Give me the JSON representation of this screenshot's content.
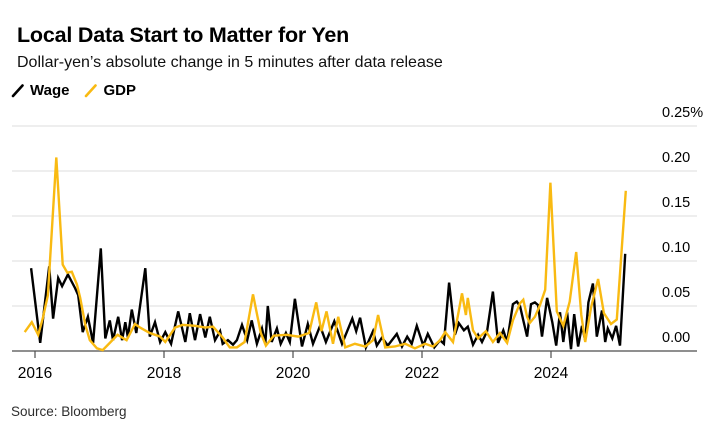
{
  "source_note": "Source: Bloomberg",
  "chart_data": {
    "type": "line",
    "title": "Local Data Start to Matter for Yen",
    "subtitle": "Dollar-yen’s absolute change in 5 minutes after data release",
    "xlabel": "",
    "ylabel": "",
    "grid": true,
    "legend_position": "top-left",
    "xlim": [
      2015.8,
      2025.3
    ],
    "ylim": [
      0,
      0.25
    ],
    "x_ticks": [
      {
        "value": 2016,
        "label": "2016"
      },
      {
        "value": 2018,
        "label": "2018"
      },
      {
        "value": 2020,
        "label": "2020"
      },
      {
        "value": 2022,
        "label": "2022"
      },
      {
        "value": 2024,
        "label": "2024"
      }
    ],
    "y_ticks": [
      {
        "value": 0.25,
        "label": "0.25%"
      },
      {
        "value": 0.2,
        "label": "0.20"
      },
      {
        "value": 0.15,
        "label": "0.15"
      },
      {
        "value": 0.1,
        "label": "0.10"
      },
      {
        "value": 0.05,
        "label": "0.05"
      },
      {
        "value": 0.0,
        "label": "0.00"
      }
    ],
    "style": {
      "grid_color": "#dcdcdc",
      "axis_color": "#8f8f8f",
      "tick_color": "#4d4d4d",
      "label_color": "#000000"
    },
    "series": [
      {
        "name": "Wage",
        "color": "#000000",
        "points": [
          [
            2015.94,
            0.092
          ],
          [
            2016.08,
            0.009
          ],
          [
            2016.22,
            0.094
          ],
          [
            2016.28,
            0.036
          ],
          [
            2016.36,
            0.081
          ],
          [
            2016.42,
            0.072
          ],
          [
            2016.51,
            0.085
          ],
          [
            2016.62,
            0.07
          ],
          [
            2016.67,
            0.062
          ],
          [
            2016.74,
            0.021
          ],
          [
            2016.82,
            0.038
          ],
          [
            2016.9,
            0.009
          ],
          [
            2017.02,
            0.114
          ],
          [
            2017.09,
            0.014
          ],
          [
            2017.16,
            0.034
          ],
          [
            2017.21,
            0.012
          ],
          [
            2017.29,
            0.038
          ],
          [
            2017.35,
            0.012
          ],
          [
            2017.4,
            0.032
          ],
          [
            2017.44,
            0.015
          ],
          [
            2017.5,
            0.046
          ],
          [
            2017.57,
            0.02
          ],
          [
            2017.71,
            0.092
          ],
          [
            2017.78,
            0.016
          ],
          [
            2017.86,
            0.032
          ],
          [
            2017.94,
            0.01
          ],
          [
            2018.02,
            0.021
          ],
          [
            2018.11,
            0.008
          ],
          [
            2018.22,
            0.044
          ],
          [
            2018.33,
            0.01
          ],
          [
            2018.4,
            0.042
          ],
          [
            2018.48,
            0.012
          ],
          [
            2018.56,
            0.041
          ],
          [
            2018.64,
            0.015
          ],
          [
            2018.71,
            0.038
          ],
          [
            2018.79,
            0.012
          ],
          [
            2018.87,
            0.022
          ],
          [
            2018.91,
            0.008
          ],
          [
            2018.99,
            0.012
          ],
          [
            2019.07,
            0.007
          ],
          [
            2019.13,
            0.012
          ],
          [
            2019.21,
            0.029
          ],
          [
            2019.29,
            0.012
          ],
          [
            2019.36,
            0.034
          ],
          [
            2019.44,
            0.008
          ],
          [
            2019.52,
            0.025
          ],
          [
            2019.57,
            0.008
          ],
          [
            2019.61,
            0.05
          ],
          [
            2019.67,
            0.01
          ],
          [
            2019.75,
            0.025
          ],
          [
            2019.81,
            0.008
          ],
          [
            2019.89,
            0.02
          ],
          [
            2019.95,
            0.01
          ],
          [
            2020.03,
            0.058
          ],
          [
            2020.14,
            0.005
          ],
          [
            2020.23,
            0.03
          ],
          [
            2020.31,
            0.008
          ],
          [
            2020.42,
            0.028
          ],
          [
            2020.51,
            0.01
          ],
          [
            2020.64,
            0.033
          ],
          [
            2020.76,
            0.008
          ],
          [
            2020.92,
            0.036
          ],
          [
            2020.98,
            0.022
          ],
          [
            2021.04,
            0.037
          ],
          [
            2021.13,
            0.004
          ],
          [
            2021.24,
            0.022
          ],
          [
            2021.3,
            0.006
          ],
          [
            2021.38,
            0.015
          ],
          [
            2021.47,
            0.006
          ],
          [
            2021.61,
            0.019
          ],
          [
            2021.69,
            0.005
          ],
          [
            2021.77,
            0.016
          ],
          [
            2021.84,
            0.008
          ],
          [
            2021.92,
            0.028
          ],
          [
            2022.02,
            0.006
          ],
          [
            2022.09,
            0.019
          ],
          [
            2022.19,
            0.004
          ],
          [
            2022.28,
            0.012
          ],
          [
            2022.34,
            0.008
          ],
          [
            2022.42,
            0.076
          ],
          [
            2022.51,
            0.018
          ],
          [
            2022.57,
            0.031
          ],
          [
            2022.65,
            0.023
          ],
          [
            2022.71,
            0.027
          ],
          [
            2022.79,
            0.007
          ],
          [
            2022.87,
            0.018
          ],
          [
            2022.93,
            0.01
          ],
          [
            2023.01,
            0.022
          ],
          [
            2023.1,
            0.066
          ],
          [
            2023.18,
            0.009
          ],
          [
            2023.26,
            0.023
          ],
          [
            2023.32,
            0.01
          ],
          [
            2023.41,
            0.052
          ],
          [
            2023.47,
            0.055
          ],
          [
            2023.52,
            0.05
          ],
          [
            2023.57,
            0.034
          ],
          [
            2023.63,
            0.016
          ],
          [
            2023.69,
            0.052
          ],
          [
            2023.75,
            0.054
          ],
          [
            2023.8,
            0.051
          ],
          [
            2023.86,
            0.016
          ],
          [
            2023.94,
            0.059
          ],
          [
            2024.02,
            0.032
          ],
          [
            2024.08,
            0.006
          ],
          [
            2024.14,
            0.043
          ],
          [
            2024.19,
            0.01
          ],
          [
            2024.25,
            0.043
          ],
          [
            2024.31,
            0.002
          ],
          [
            2024.36,
            0.041
          ],
          [
            2024.42,
            0.005
          ],
          [
            2024.48,
            0.028
          ],
          [
            2024.53,
            0.012
          ],
          [
            2024.58,
            0.054
          ],
          [
            2024.65,
            0.075
          ],
          [
            2024.71,
            0.016
          ],
          [
            2024.79,
            0.045
          ],
          [
            2024.84,
            0.01
          ],
          [
            2024.88,
            0.025
          ],
          [
            2024.95,
            0.014
          ],
          [
            2025.01,
            0.028
          ],
          [
            2025.07,
            0.006
          ],
          [
            2025.15,
            0.108
          ]
        ]
      },
      {
        "name": "GDP",
        "color": "#f9ba12",
        "points": [
          [
            2015.84,
            0.021
          ],
          [
            2015.95,
            0.032
          ],
          [
            2016.05,
            0.018
          ],
          [
            2016.12,
            0.036
          ],
          [
            2016.2,
            0.062
          ],
          [
            2016.33,
            0.215
          ],
          [
            2016.43,
            0.096
          ],
          [
            2016.5,
            0.087
          ],
          [
            2016.57,
            0.088
          ],
          [
            2016.65,
            0.074
          ],
          [
            2016.7,
            0.059
          ],
          [
            2016.78,
            0.029
          ],
          [
            2016.85,
            0.012
          ],
          [
            2016.96,
            0.003
          ],
          [
            2017.05,
            0.001
          ],
          [
            2017.16,
            0.009
          ],
          [
            2017.28,
            0.018
          ],
          [
            2017.42,
            0.012
          ],
          [
            2017.55,
            0.03
          ],
          [
            2017.63,
            0.026
          ],
          [
            2017.78,
            0.02
          ],
          [
            2017.94,
            0.016
          ],
          [
            2018.02,
            0.01
          ],
          [
            2018.17,
            0.026
          ],
          [
            2018.29,
            0.029
          ],
          [
            2018.48,
            0.028
          ],
          [
            2018.64,
            0.026
          ],
          [
            2018.76,
            0.027
          ],
          [
            2018.91,
            0.015
          ],
          [
            2019.02,
            0.004
          ],
          [
            2019.13,
            0.004
          ],
          [
            2019.25,
            0.01
          ],
          [
            2019.38,
            0.063
          ],
          [
            2019.5,
            0.02
          ],
          [
            2019.58,
            0.006
          ],
          [
            2019.7,
            0.017
          ],
          [
            2019.9,
            0.018
          ],
          [
            2020.08,
            0.016
          ],
          [
            2020.25,
            0.02
          ],
          [
            2020.36,
            0.054
          ],
          [
            2020.44,
            0.022
          ],
          [
            2020.52,
            0.044
          ],
          [
            2020.62,
            0.008
          ],
          [
            2020.7,
            0.038
          ],
          [
            2020.81,
            0.004
          ],
          [
            2020.96,
            0.008
          ],
          [
            2021.12,
            0.005
          ],
          [
            2021.24,
            0.012
          ],
          [
            2021.32,
            0.04
          ],
          [
            2021.43,
            0.004
          ],
          [
            2021.58,
            0.005
          ],
          [
            2021.74,
            0.008
          ],
          [
            2021.89,
            0.003
          ],
          [
            2022.05,
            0.008
          ],
          [
            2022.17,
            0.005
          ],
          [
            2022.28,
            0.012
          ],
          [
            2022.36,
            0.021
          ],
          [
            2022.48,
            0.01
          ],
          [
            2022.62,
            0.064
          ],
          [
            2022.68,
            0.04
          ],
          [
            2022.71,
            0.059
          ],
          [
            2022.79,
            0.023
          ],
          [
            2022.87,
            0.014
          ],
          [
            2022.99,
            0.022
          ],
          [
            2023.1,
            0.01
          ],
          [
            2023.21,
            0.02
          ],
          [
            2023.32,
            0.009
          ],
          [
            2023.41,
            0.034
          ],
          [
            2023.52,
            0.053
          ],
          [
            2023.57,
            0.057
          ],
          [
            2023.63,
            0.038
          ],
          [
            2023.67,
            0.031
          ],
          [
            2023.75,
            0.038
          ],
          [
            2023.83,
            0.051
          ],
          [
            2023.91,
            0.068
          ],
          [
            2023.99,
            0.187
          ],
          [
            2024.09,
            0.044
          ],
          [
            2024.19,
            0.028
          ],
          [
            2024.29,
            0.055
          ],
          [
            2024.39,
            0.11
          ],
          [
            2024.47,
            0.04
          ],
          [
            2024.53,
            0.01
          ],
          [
            2024.62,
            0.048
          ],
          [
            2024.73,
            0.08
          ],
          [
            2024.82,
            0.042
          ],
          [
            2024.93,
            0.03
          ],
          [
            2025.02,
            0.035
          ],
          [
            2025.16,
            0.178
          ]
        ]
      }
    ]
  }
}
